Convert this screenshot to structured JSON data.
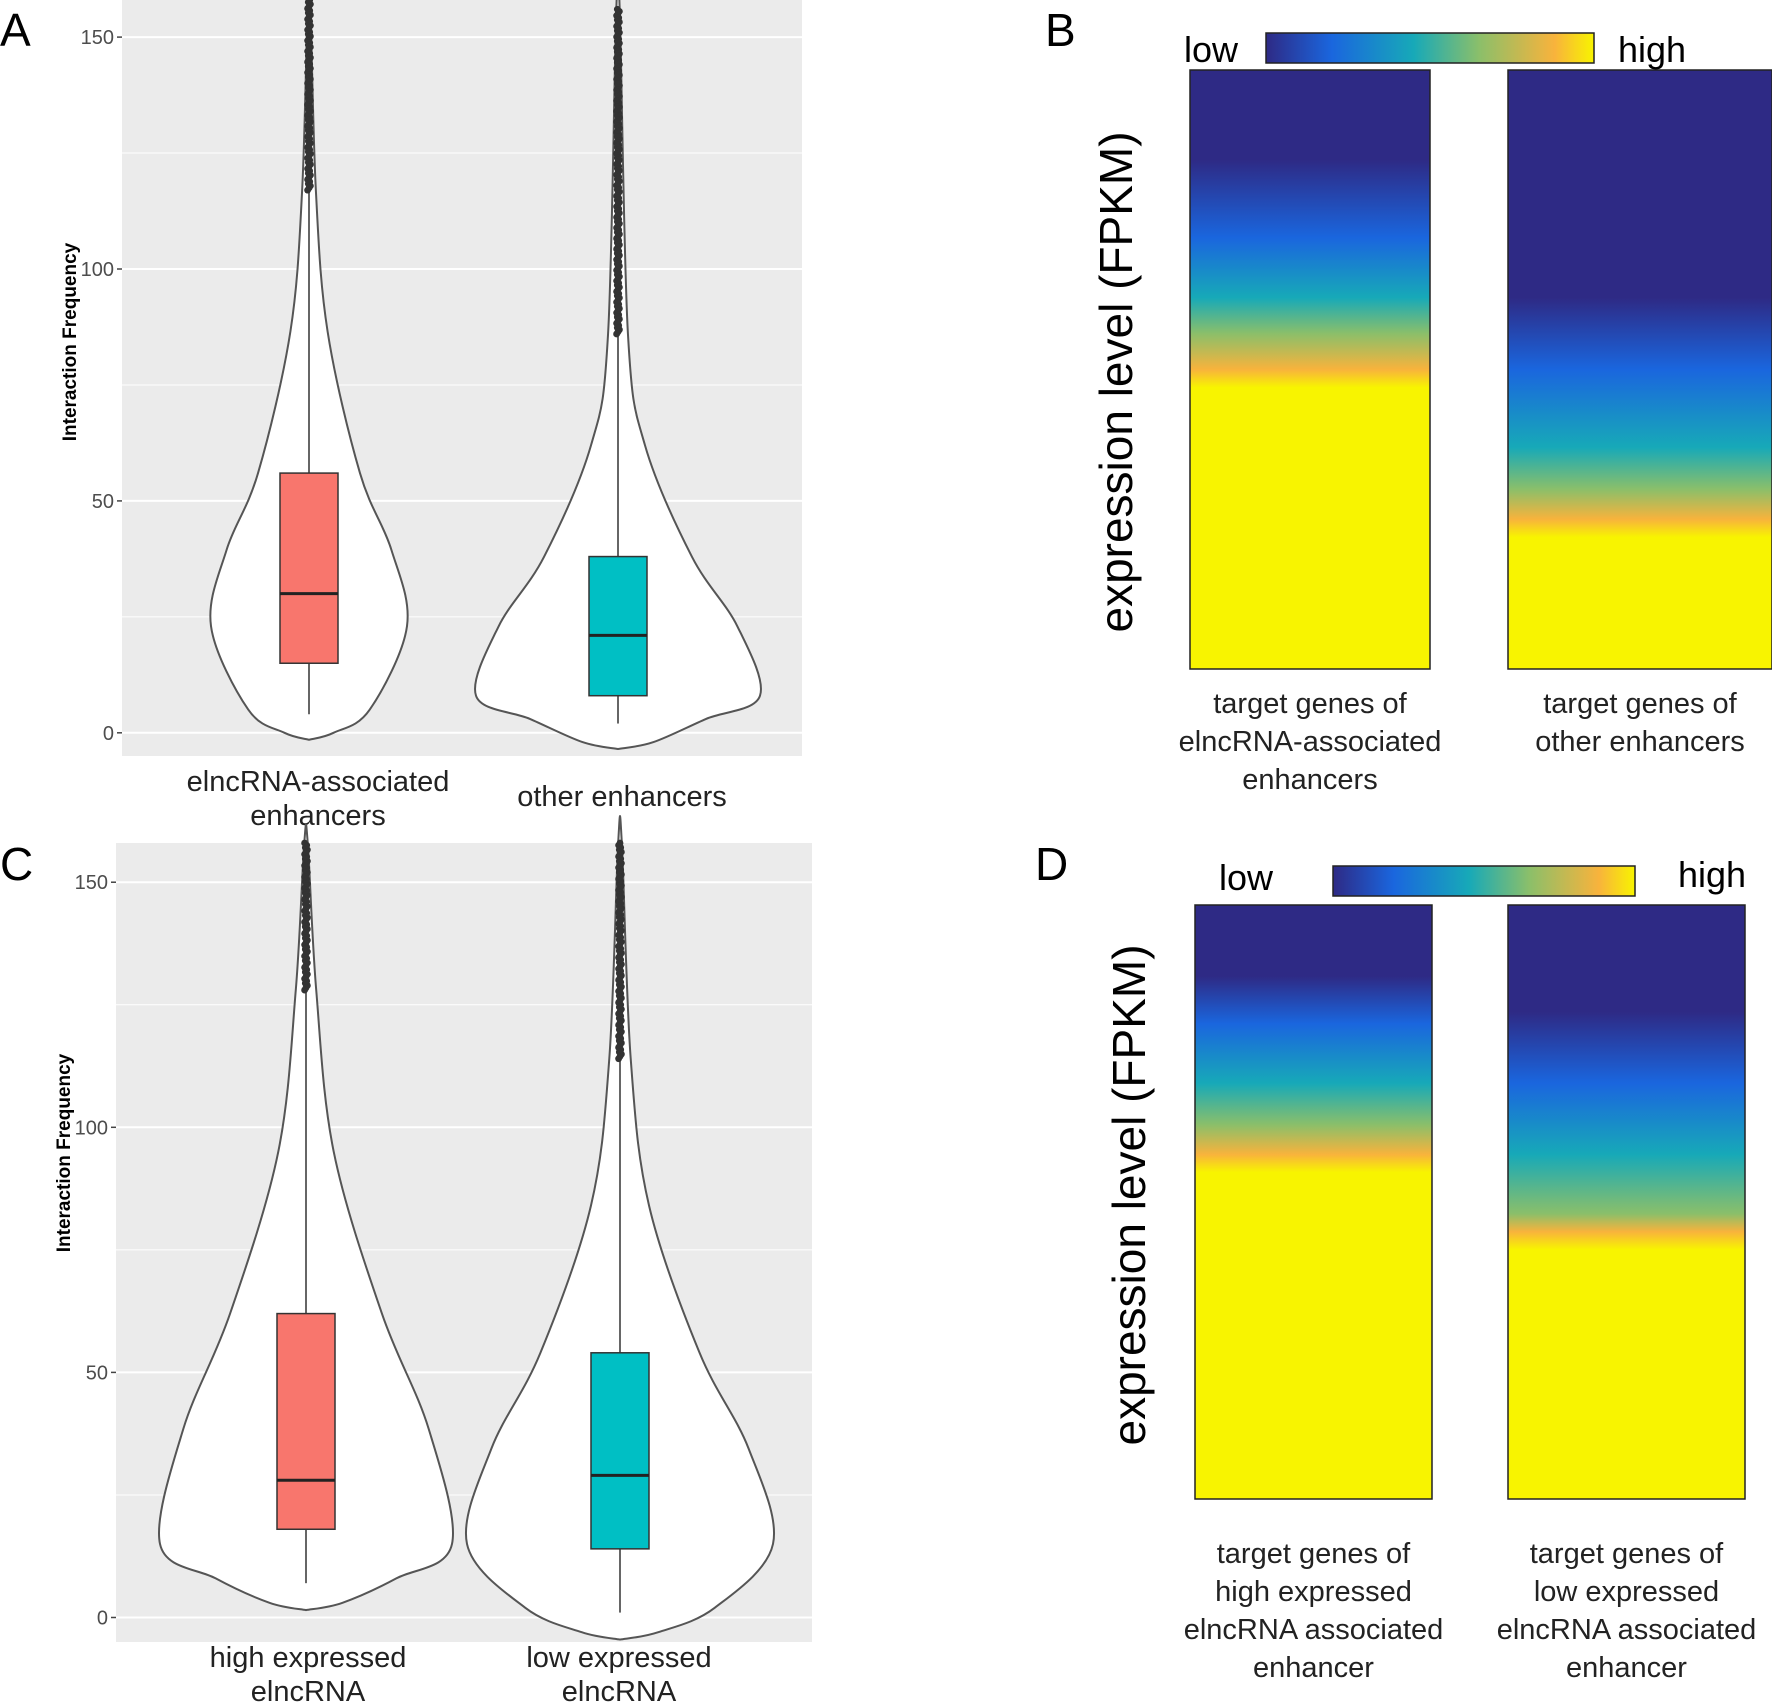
{
  "figure_caption": "",
  "panels": [
    {
      "letter": "A"
    },
    {
      "letter": "B"
    },
    {
      "letter": "C"
    },
    {
      "letter": "D"
    }
  ],
  "colors": {
    "panel_bg": "#ebebeb",
    "grid": "#ffffff",
    "violin_stroke": "#555555",
    "box_red": "#f8766d",
    "box_teal": "#00bfc4",
    "heat_low": "#2e2a85",
    "heat_blue": "#1a66de",
    "heat_teal": "#17a9b8",
    "heat_green": "#8bbf6a",
    "heat_orange": "#f8b33c",
    "heat_high": "#f8f400"
  },
  "chart_data": [
    {
      "panel": "A",
      "type": "violin",
      "title": "",
      "ylabel": "Interaction  Frequency",
      "xlabel": "",
      "ylim": [
        -5,
        158
      ],
      "yticks": [
        0,
        50,
        100,
        150
      ],
      "grid": true,
      "groups": [
        {
          "name": "elncRNA-associated enhancers",
          "name_lines": [
            "elncRNA-associated",
            "enhancers"
          ],
          "color": "#f8766d",
          "min": 4,
          "q1": 15,
          "median": 30,
          "q3": 56,
          "whisker_high": 117,
          "max": 158,
          "outlier_from": 117,
          "density_peak": 23
        },
        {
          "name": "other enhancers",
          "name_lines": [
            "other enhancers"
          ],
          "color": "#00bfc4",
          "min": 2,
          "q1": 8,
          "median": 21,
          "q3": 38,
          "whisker_high": 86,
          "max": 156,
          "outlier_from": 86,
          "density_peak": 8
        }
      ]
    },
    {
      "panel": "B",
      "type": "heatmap",
      "ylabel": "expression level (FPKM)",
      "legend": {
        "low_label": "low",
        "high_label": "high"
      },
      "columns": [
        {
          "name": "target genes of elncRNA-associated enhancers",
          "name_lines": [
            "target genes of",
            "elncRNA-associated",
            "enhancers"
          ],
          "stops": [
            [
              0,
              "#2e2a85"
            ],
            [
              0.15,
              "#2e2a85"
            ],
            [
              0.28,
              "#1a66de"
            ],
            [
              0.38,
              "#17a9b8"
            ],
            [
              0.44,
              "#8bbf6a"
            ],
            [
              0.5,
              "#f8b33c"
            ],
            [
              0.53,
              "#f8f400"
            ],
            [
              1,
              "#f8f400"
            ]
          ]
        },
        {
          "name": "target genes of other enhancers",
          "name_lines": [
            "target genes of",
            "other enhancers"
          ],
          "stops": [
            [
              0,
              "#2e2a85"
            ],
            [
              0.38,
              "#2e2a85"
            ],
            [
              0.5,
              "#1a66de"
            ],
            [
              0.63,
              "#17a9b8"
            ],
            [
              0.7,
              "#8bbf6a"
            ],
            [
              0.75,
              "#f8b33c"
            ],
            [
              0.78,
              "#f8f400"
            ],
            [
              1,
              "#f8f400"
            ]
          ]
        }
      ]
    },
    {
      "panel": "C",
      "type": "violin",
      "title": "",
      "ylabel": "Interaction Frequency",
      "xlabel": "",
      "ylim": [
        -5,
        158
      ],
      "yticks": [
        0,
        50,
        100,
        150
      ],
      "grid": true,
      "groups": [
        {
          "name": "high expressed elncRNA",
          "name_lines": [
            "high expressed",
            "elncRNA"
          ],
          "color": "#f8766d",
          "min": 7,
          "q1": 18,
          "median": 28,
          "q3": 62,
          "whisker_high": 128,
          "max": 158,
          "outlier_from": 128,
          "density_peak": 15
        },
        {
          "name": "low expressed elncRNA",
          "name_lines": [
            "low expressed",
            "elncRNA"
          ],
          "color": "#00bfc4",
          "min": 1,
          "q1": 14,
          "median": 29,
          "q3": 54,
          "whisker_high": 114,
          "max": 158,
          "outlier_from": 114,
          "density_peak": 15
        }
      ]
    },
    {
      "panel": "D",
      "type": "heatmap",
      "ylabel": "expression level (FPKM)",
      "legend": {
        "low_label": "low",
        "high_label": "high"
      },
      "columns": [
        {
          "name": "target genes of high expressed elncRNA associated enhancer",
          "name_lines": [
            "target genes of",
            "high expressed",
            "elncRNA associated",
            "enhancer"
          ],
          "stops": [
            [
              0,
              "#2e2a85"
            ],
            [
              0.12,
              "#2e2a85"
            ],
            [
              0.2,
              "#1a66de"
            ],
            [
              0.3,
              "#17a9b8"
            ],
            [
              0.37,
              "#8bbf6a"
            ],
            [
              0.42,
              "#f8b33c"
            ],
            [
              0.45,
              "#f8f400"
            ],
            [
              1,
              "#f8f400"
            ]
          ]
        },
        {
          "name": "target genes of low expressed elncRNA associated enhancer",
          "name_lines": [
            "target genes of",
            "low expressed",
            "elncRNA associated",
            "enhancer"
          ],
          "stops": [
            [
              0,
              "#2e2a85"
            ],
            [
              0.18,
              "#2e2a85"
            ],
            [
              0.3,
              "#1a66de"
            ],
            [
              0.42,
              "#17a9b8"
            ],
            [
              0.52,
              "#8bbf6a"
            ],
            [
              0.55,
              "#f8b33c"
            ],
            [
              0.58,
              "#f8f400"
            ],
            [
              1,
              "#f8f400"
            ]
          ]
        }
      ]
    }
  ]
}
